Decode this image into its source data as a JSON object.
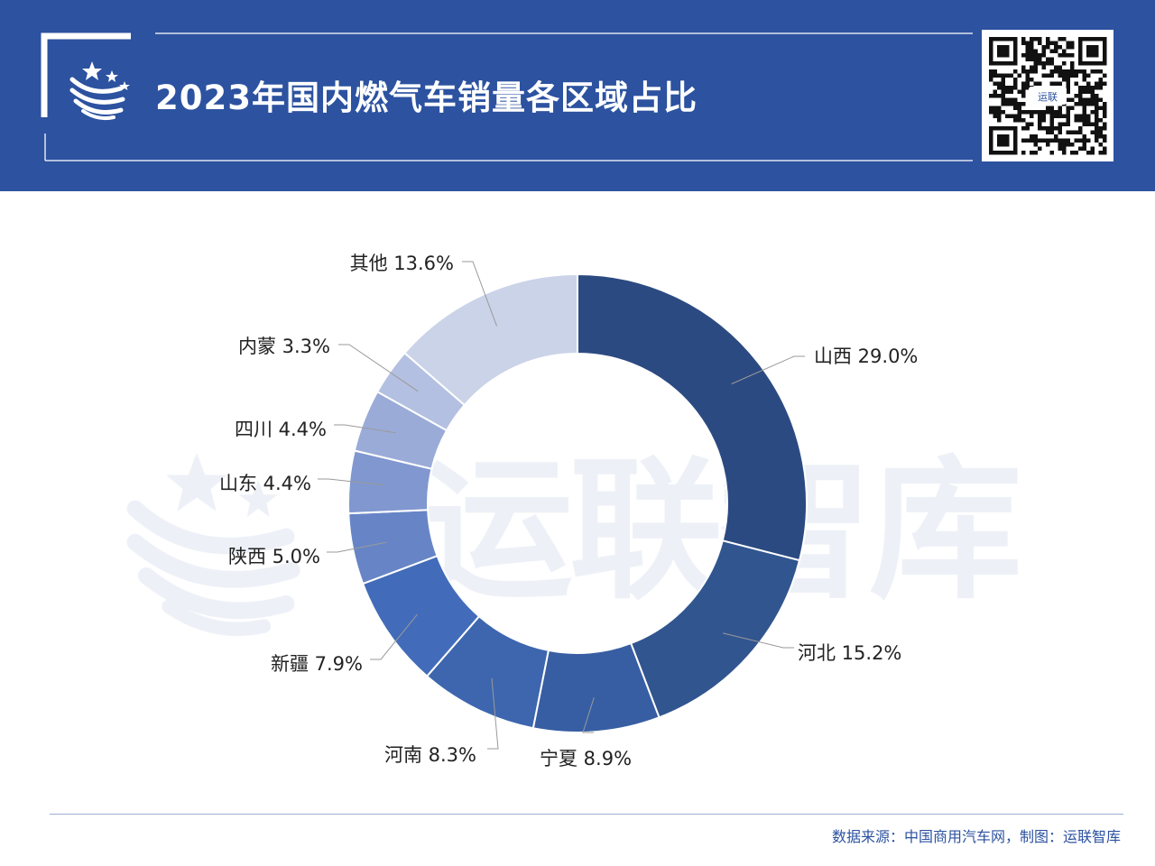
{
  "header": {
    "title": "2023年国内燃气车销量各区域占比",
    "bg_color": "#2c52a0"
  },
  "qr": {
    "logo_text": "运联"
  },
  "watermark": {
    "text": "运联智库"
  },
  "chart_data": {
    "type": "pie",
    "donut": true,
    "title": "2023年国内燃气车销量各区域占比",
    "unit": "%",
    "slices": [
      {
        "label": "山西",
        "value": 29.0,
        "color": "#2c4a82"
      },
      {
        "label": "河北",
        "value": 15.2,
        "color": "#31558f"
      },
      {
        "label": "宁夏",
        "value": 8.9,
        "color": "#375ea3"
      },
      {
        "label": "河南",
        "value": 8.3,
        "color": "#3d66ae"
      },
      {
        "label": "新疆",
        "value": 7.9,
        "color": "#426cb9"
      },
      {
        "label": "陕西",
        "value": 5.0,
        "color": "#6785c6"
      },
      {
        "label": "山东",
        "value": 4.4,
        "color": "#8097cf"
      },
      {
        "label": "四川",
        "value": 4.4,
        "color": "#9aabd8"
      },
      {
        "label": "内蒙",
        "value": 3.3,
        "color": "#b4c0e1"
      },
      {
        "label": "其他",
        "value": 13.6,
        "color": "#cbd3e8"
      }
    ]
  },
  "footer": {
    "source": "数据来源：中国商用汽车网，制图：运联智库"
  }
}
